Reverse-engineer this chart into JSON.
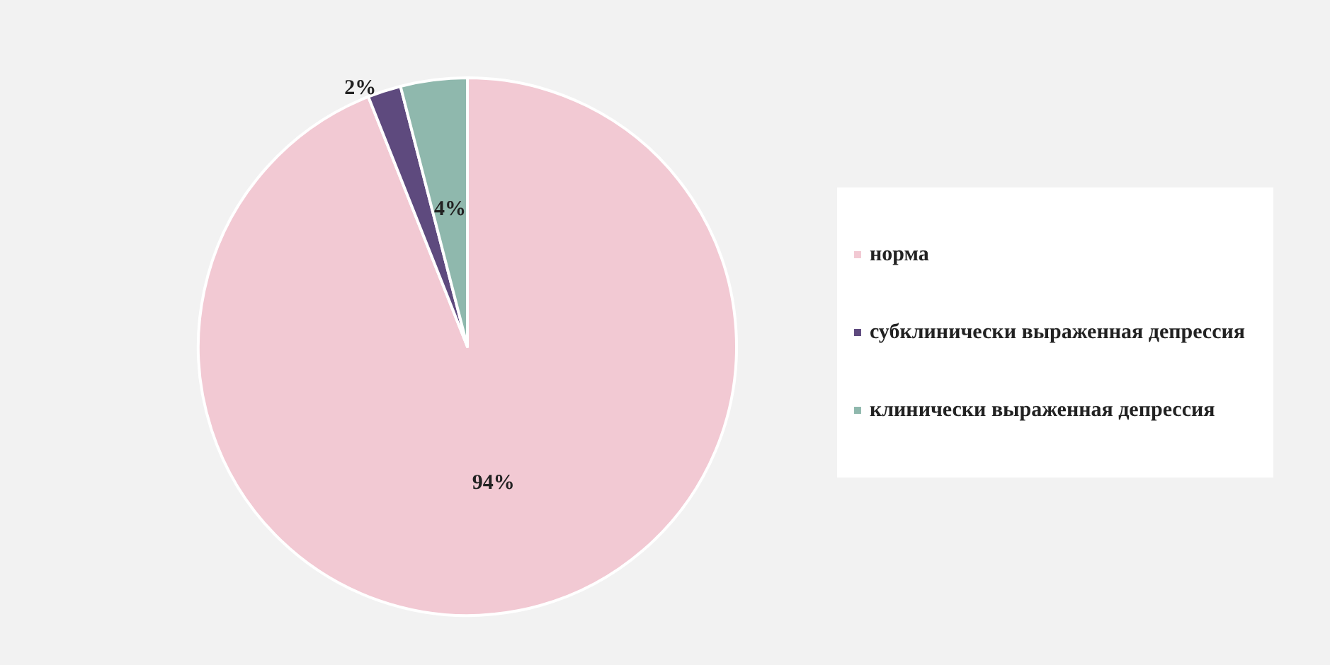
{
  "chart_data": {
    "type": "pie",
    "categories": [
      "норма",
      "субклинически выраженная депрессия",
      "клинически выраженная депрессия"
    ],
    "values": [
      94,
      2,
      4
    ],
    "colors": [
      "#f2c9d3",
      "#5e4a7e",
      "#8fb8ad"
    ],
    "value_labels": [
      "94%",
      "2%",
      "4%"
    ],
    "legend": "right"
  }
}
